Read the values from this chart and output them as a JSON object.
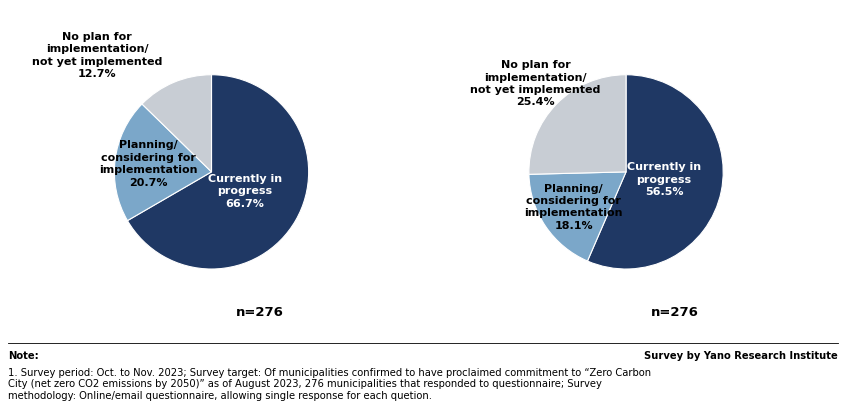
{
  "left_pie": {
    "values": [
      66.7,
      20.7,
      12.7
    ],
    "inner_label": "Currently in\nprogress\n66.7%",
    "outer_labels": [
      {
        "text": "Planning/\nconsidering for\nimplementation\n20.7%",
        "ha": "right"
      },
      {
        "text": "No plan for\nimplementation/\nnot yet implemented\n12.7%",
        "ha": "right"
      }
    ],
    "colors": [
      "#1f3864",
      "#7ba7c9",
      "#c8cdd4"
    ],
    "startangle": 90,
    "n_label": "n=276"
  },
  "right_pie": {
    "values": [
      56.5,
      18.1,
      25.4
    ],
    "inner_label": "Currently in\nprogress\n56.5%",
    "outer_labels": [
      {
        "text": "Planning/\nconsidering for\nimplementation\n18.1%",
        "ha": "left"
      },
      {
        "text": "No plan for\nimplementation/\nnot yet implemented\n25.4%",
        "ha": "center"
      }
    ],
    "colors": [
      "#1f3864",
      "#7ba7c9",
      "#c8cdd4"
    ],
    "startangle": 90,
    "n_label": "n=276"
  },
  "note_label": "Note:",
  "survey_label": "Survey by Yano Research Institute",
  "note_text": "1. Survey period: Oct. to Nov. 2023; Survey target: Of municipalities confirmed to have proclaimed commitment to “Zero Carbon\nCity (net zero CO2 emissions by 2050)” as of August 2023, 276 municipalities that responded to questionnaire; Survey\nmethodology: Online/email questionnaire, allowing single response for each quetion.",
  "bg_color": "#ffffff",
  "text_color": "#000000",
  "font_size_label": 8.0,
  "font_size_note": 7.2,
  "font_size_n": 9.5
}
